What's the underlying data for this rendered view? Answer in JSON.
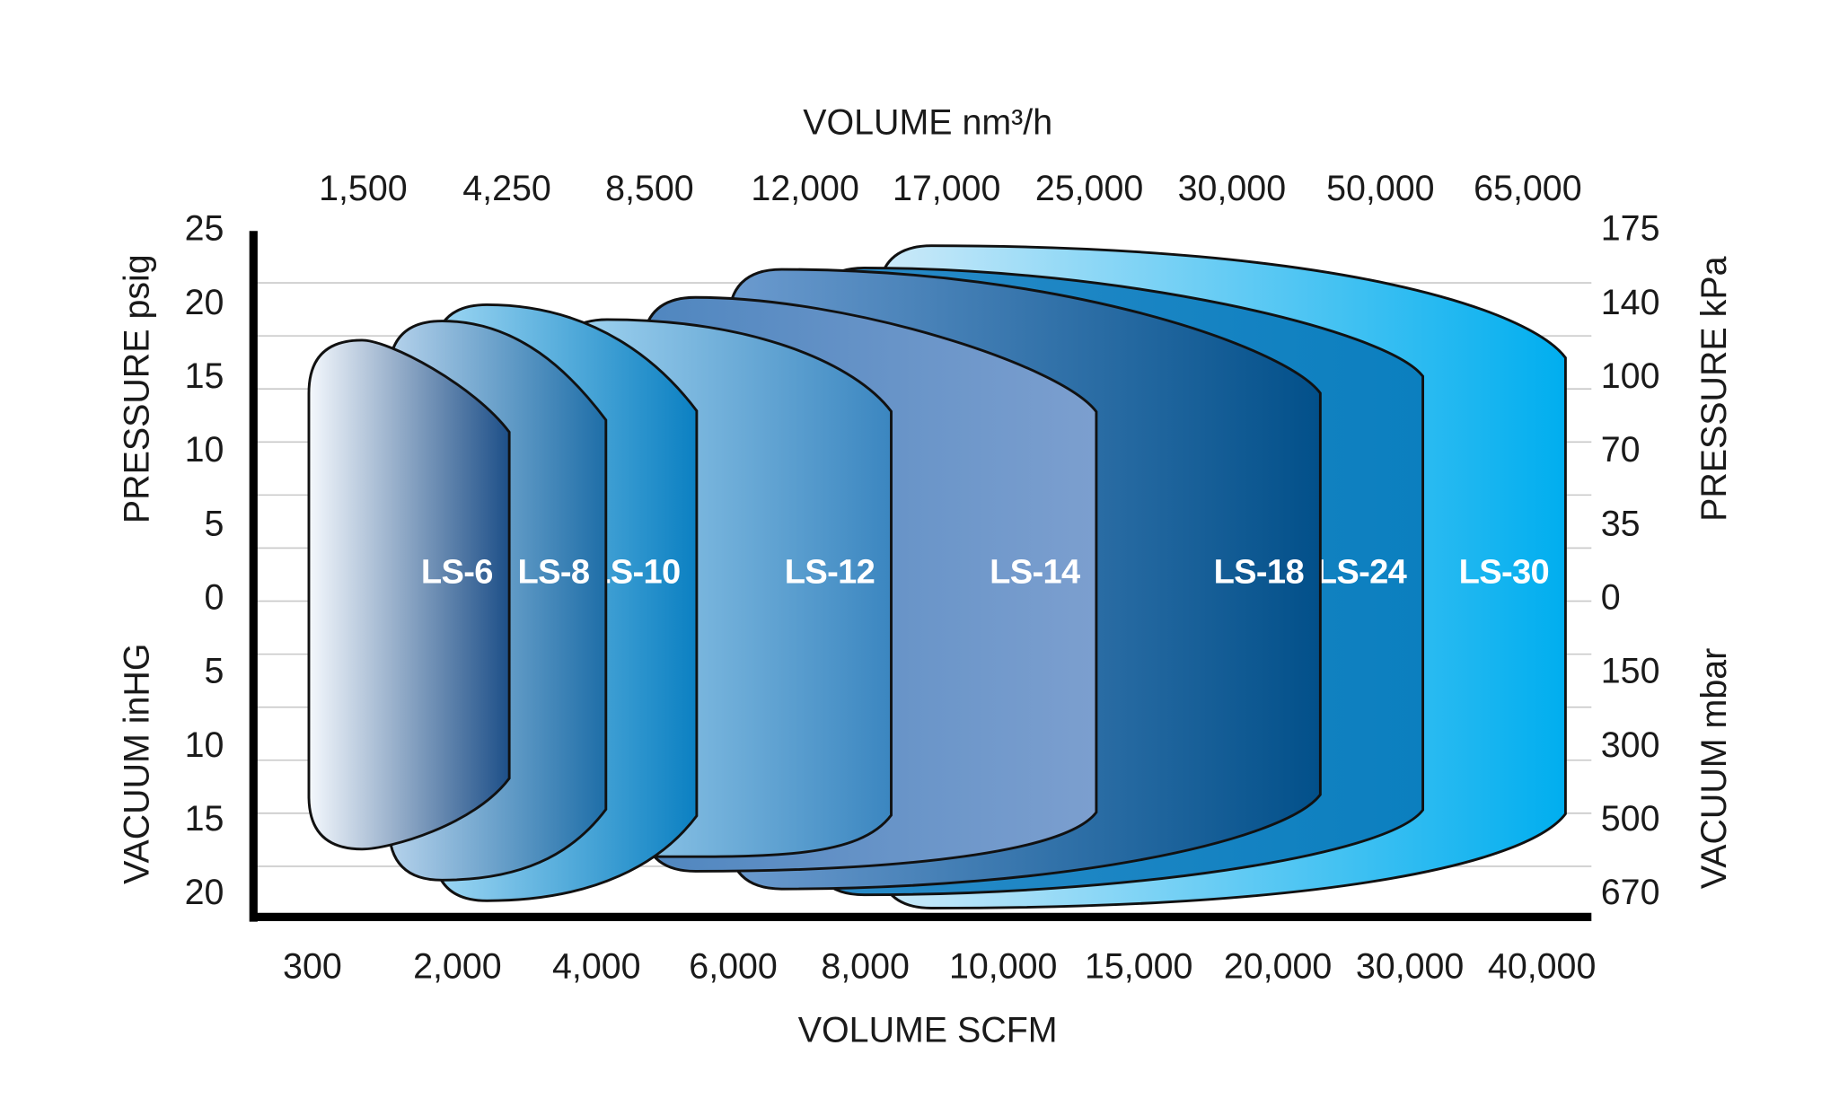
{
  "chart_data": {
    "type": "envelope",
    "xlabel": "VOLUME SCFM",
    "x2label": "VOLUME nm³/h",
    "ylabel": "PRESSURE psig",
    "ylabel_vacuum": "VACUUM inHG",
    "y2label": "PRESSURE kPa",
    "y2label_vacuum": "VACUUM mbar",
    "xticks": [
      300,
      {
        "value": 2000,
        "label": "2,000"
      },
      {
        "value": 4000,
        "label": "4,000"
      },
      {
        "value": 6000,
        "label": "6,000"
      },
      {
        "value": 8000,
        "label": "8,000"
      },
      {
        "value": 10000,
        "label": "10,000"
      },
      {
        "value": 15000,
        "label": "15,000"
      },
      {
        "value": 20000,
        "label": "20,000"
      },
      {
        "value": 30000,
        "label": "30,000"
      },
      {
        "value": 40000,
        "label": "40,000"
      }
    ],
    "x2ticks": [
      {
        "value": 1500,
        "label": "1,500"
      },
      {
        "value": 4250,
        "label": "4,250"
      },
      {
        "value": 8500,
        "label": "8,500"
      },
      {
        "value": 12000,
        "label": "12,000"
      },
      {
        "value": 17000,
        "label": "17,000"
      },
      {
        "value": 25000,
        "label": "25,000"
      },
      {
        "value": 30000,
        "label": "30,000"
      },
      {
        "value": 50000,
        "label": "50,000"
      },
      {
        "value": 65000,
        "label": "65,000"
      }
    ],
    "ylim": [
      -21.5,
      25
    ],
    "yticks": [
      25,
      20,
      15,
      10,
      5,
      0,
      {
        "value": -5,
        "label": "5"
      },
      {
        "value": -10,
        "label": "10"
      },
      {
        "value": -15,
        "label": "15"
      },
      {
        "value": -20,
        "label": "20"
      }
    ],
    "y2ticks": [
      175,
      140,
      100,
      70,
      35,
      0,
      {
        "value": -150,
        "label": "150"
      },
      {
        "value": -300,
        "label": "300"
      },
      {
        "value": -500,
        "label": "500"
      },
      {
        "value": -670,
        "label": "670"
      }
    ],
    "series": [
      {
        "name": "LS-6",
        "gradient": [
          "#f4f8fd",
          "#1d4f88"
        ],
        "values": [
          17.6,
          -16.9
        ]
      },
      {
        "name": "LS-8",
        "gradient": [
          "#b6d3ec",
          "#1e6ea8"
        ],
        "values": [
          18.9,
          -19.0
        ]
      },
      {
        "name": "LS-10",
        "gradient": [
          "#9fd8f4",
          "#0b80c2"
        ],
        "values": [
          20.0,
          -20.4
        ]
      },
      {
        "name": "LS-12",
        "gradient": [
          "#a6d8f3",
          "#3b86c0"
        ],
        "values": [
          19.0,
          -17.4
        ]
      },
      {
        "name": "LS-14",
        "gradient": [
          "#4f86bf",
          "#7c9fcf"
        ],
        "values": [
          20.5,
          -18.4
        ]
      },
      {
        "name": "LS-18",
        "gradient": [
          "#6c9bcf",
          "#02508a"
        ],
        "values": [
          22.4,
          -19.6
        ]
      },
      {
        "name": "LS-24",
        "gradient": [
          "#2a8bc8",
          "#0b7fbf"
        ],
        "values": [
          22.5,
          -20.0
        ]
      },
      {
        "name": "LS-30",
        "gradient": [
          "#cdeaf9",
          "#00aeef"
        ],
        "values": [
          24.0,
          -20.9
        ]
      }
    ]
  }
}
